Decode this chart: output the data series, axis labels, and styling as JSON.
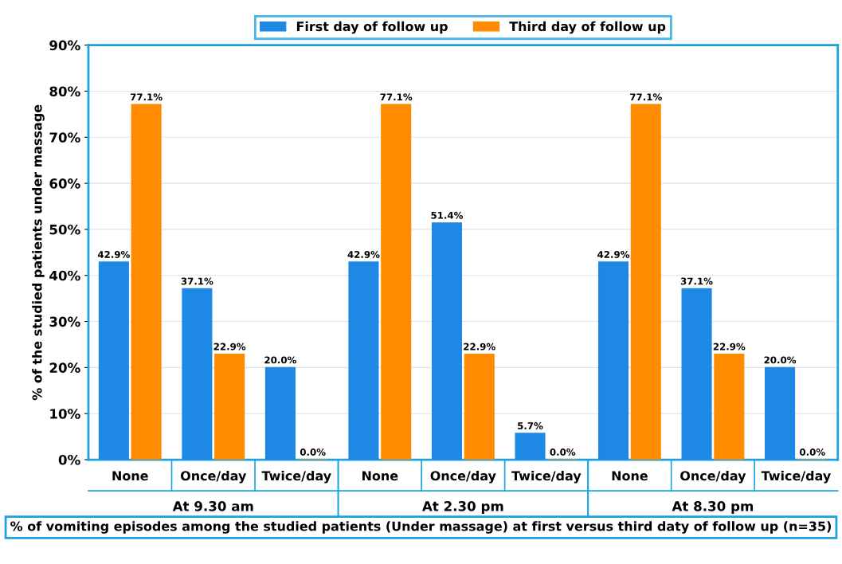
{
  "chart_data": {
    "type": "bar",
    "categories": [
      "None",
      "Once/day",
      "Twice/day",
      "None",
      "Once/day",
      "Twice/day",
      "None",
      "Once/day",
      "Twice/day"
    ],
    "series": [
      {
        "name": "First day of follow up",
        "color": "#1e88e5",
        "values": [
          42.9,
          37.1,
          20.0,
          42.9,
          51.4,
          5.7,
          42.9,
          37.1,
          20.0
        ],
        "value_labels": [
          "42.9%",
          "37.1%",
          "20.0%",
          "42.9%",
          "51.4%",
          "5.7%",
          "42.9%",
          "37.1%",
          "20.0%"
        ]
      },
      {
        "name": "Third day of follow up",
        "color": "#ff8c00",
        "values": [
          77.1,
          22.9,
          0.0,
          77.1,
          22.9,
          0.0,
          77.1,
          22.9,
          0.0
        ],
        "value_labels": [
          "77.1%",
          "22.9%",
          "0.0%",
          "77.1%",
          "22.9%",
          "0.0%",
          "77.1%",
          "22.9%",
          "0.0%"
        ]
      }
    ],
    "ylim": [
      0,
      90
    ],
    "yticks": [
      {
        "value": 0,
        "label": "0%"
      },
      {
        "value": 10,
        "label": "10%"
      },
      {
        "value": 20,
        "label": "20%"
      },
      {
        "value": 30,
        "label": "30%"
      },
      {
        "value": 40,
        "label": "40%"
      },
      {
        "value": 50,
        "label": "50%"
      },
      {
        "value": 60,
        "label": "60%"
      },
      {
        "value": 70,
        "label": "70%"
      },
      {
        "value": 80,
        "label": "80%"
      },
      {
        "value": 90,
        "label": "90%"
      }
    ],
    "ylabel": "% of the studied patients under massage",
    "xlabel": "% of vomiting episodes among the studied patients (Under massage) at first versus third daty of follow up (n=35)",
    "annotations": [
      "At 9.30 am",
      "At 2.30 pm",
      "At 8.30 pm"
    ],
    "grid": "y",
    "legend": "top"
  }
}
